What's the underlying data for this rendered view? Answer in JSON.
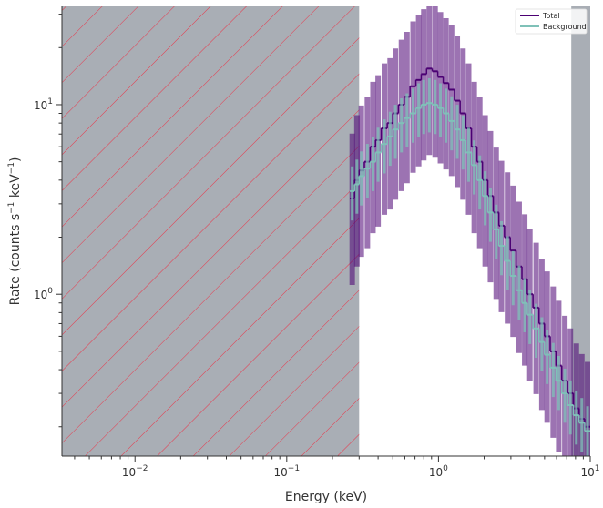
{
  "chart_data": {
    "type": "line",
    "xscale": "log",
    "yscale": "log",
    "xlim": [
      0.0033,
      10
    ],
    "ylim": [
      0.14,
      33
    ],
    "xticks": [
      {
        "value": 0.01,
        "base": "10",
        "exp": "−2"
      },
      {
        "value": 0.1,
        "base": "10",
        "exp": "−1"
      },
      {
        "value": 1,
        "base": "10",
        "exp": "0"
      },
      {
        "value": 10,
        "base": "10",
        "exp": "1"
      }
    ],
    "yticks": [
      {
        "value": 1,
        "base": "10",
        "exp": "0"
      },
      {
        "value": 10,
        "base": "10",
        "exp": "1"
      }
    ],
    "xlabel": "Energy (keV)",
    "ylabel": {
      "pre": "Rate (counts s",
      "sup1": "−1",
      "mid": " keV",
      "sup2": "−1",
      "post": ")"
    },
    "legend": {
      "placement": "top-right",
      "entries": [
        "Total",
        "Background"
      ]
    },
    "colors": {
      "total": "#4b0073",
      "background": "#7fc1b8",
      "excluded_fill": "#a9aeb5",
      "hatch": "#e8374a",
      "axis": "#333333"
    },
    "excluded_regions": [
      {
        "x_range": [
          0.0033,
          0.3
        ],
        "hatched": true
      },
      {
        "x_range": [
          7.5,
          10
        ],
        "hatched": false
      }
    ],
    "series": [
      {
        "name": "Total",
        "color": "#4b0073",
        "x": [
          0.27,
          0.29,
          0.31,
          0.34,
          0.37,
          0.4,
          0.44,
          0.48,
          0.52,
          0.57,
          0.62,
          0.68,
          0.74,
          0.8,
          0.87,
          0.95,
          1.03,
          1.12,
          1.22,
          1.33,
          1.45,
          1.58,
          1.72,
          1.87,
          2.03,
          2.2,
          2.4,
          2.6,
          2.85,
          3.1,
          3.4,
          3.7,
          4.0,
          4.4,
          4.8,
          5.2,
          5.7,
          6.2,
          6.8,
          7.4,
          8.1,
          8.8,
          9.6
        ],
        "y": [
          3.2,
          4.0,
          4.5,
          5.0,
          6.0,
          6.5,
          7.5,
          8.0,
          9.0,
          10.0,
          11.0,
          12.5,
          13.5,
          14.5,
          15.5,
          15.0,
          14.0,
          13.0,
          12.0,
          10.5,
          9.0,
          7.5,
          6.0,
          5.0,
          4.0,
          3.3,
          2.7,
          2.3,
          2.0,
          1.7,
          1.4,
          1.2,
          1.0,
          0.85,
          0.7,
          0.6,
          0.5,
          0.42,
          0.35,
          0.3,
          0.25,
          0.22,
          0.2
        ]
      },
      {
        "name": "Background",
        "color": "#7fc1b8",
        "x": [
          0.27,
          0.29,
          0.31,
          0.34,
          0.37,
          0.4,
          0.44,
          0.48,
          0.52,
          0.57,
          0.62,
          0.68,
          0.74,
          0.8,
          0.87,
          0.95,
          1.03,
          1.12,
          1.22,
          1.33,
          1.45,
          1.58,
          1.72,
          1.87,
          2.03,
          2.2,
          2.4,
          2.6,
          2.85,
          3.1,
          3.4,
          3.7,
          4.0,
          4.4,
          4.8,
          5.2,
          5.7,
          6.2,
          6.8,
          7.4,
          8.1,
          8.8,
          9.6
        ],
        "y": [
          3.5,
          3.8,
          4.2,
          4.6,
          5.0,
          5.6,
          6.2,
          6.8,
          7.4,
          8.0,
          8.5,
          9.0,
          9.6,
          10.0,
          10.2,
          10.0,
          9.6,
          9.0,
          8.2,
          7.4,
          6.5,
          5.6,
          4.8,
          4.0,
          3.3,
          2.7,
          2.2,
          1.8,
          1.5,
          1.25,
          1.05,
          0.9,
          0.78,
          0.66,
          0.56,
          0.48,
          0.41,
          0.35,
          0.3,
          0.26,
          0.23,
          0.21,
          0.19
        ]
      }
    ]
  }
}
